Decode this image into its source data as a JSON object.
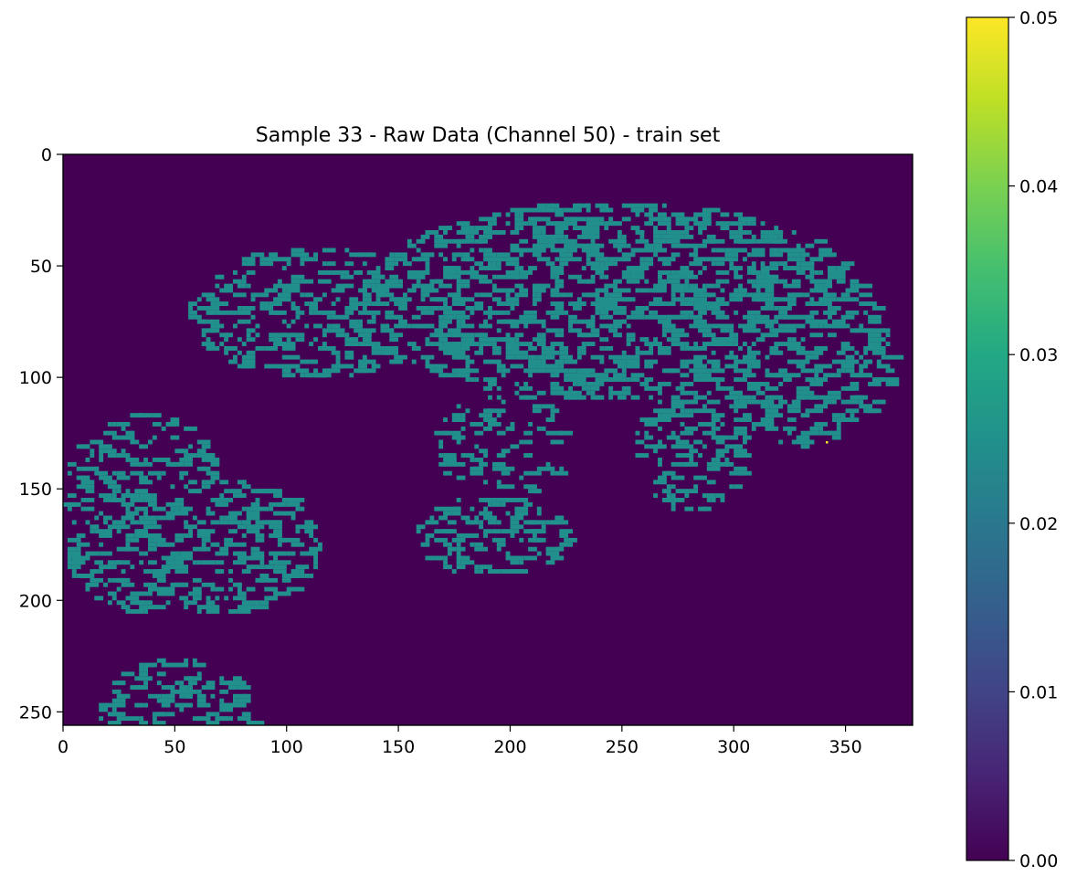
{
  "chart_data": {
    "type": "heatmap",
    "title": "Sample 33 - Raw Data (Channel 50) - train set",
    "xlabel": "",
    "ylabel": "",
    "xlim": [
      0,
      380
    ],
    "ylim": [
      256,
      0
    ],
    "image_shape": [
      256,
      380
    ],
    "x_ticks": [
      "0",
      "50",
      "100",
      "150",
      "200",
      "250",
      "300",
      "350"
    ],
    "y_ticks": [
      "0",
      "50",
      "100",
      "150",
      "200",
      "250"
    ],
    "colormap": "viridis",
    "colorbar": {
      "range": [
        0.0,
        0.05
      ],
      "ticks": [
        "0.00",
        "0.01",
        "0.02",
        "0.03",
        "0.04",
        "0.05"
      ]
    },
    "background_value": 0.0,
    "tissue_value": 0.025,
    "outlier_value": 0.05,
    "outlier_point": [
      342,
      129
    ],
    "grid": false,
    "legend": "none"
  },
  "colors": {
    "background": "#440154",
    "tissue": "#21908d",
    "outlier": "#fde725"
  }
}
